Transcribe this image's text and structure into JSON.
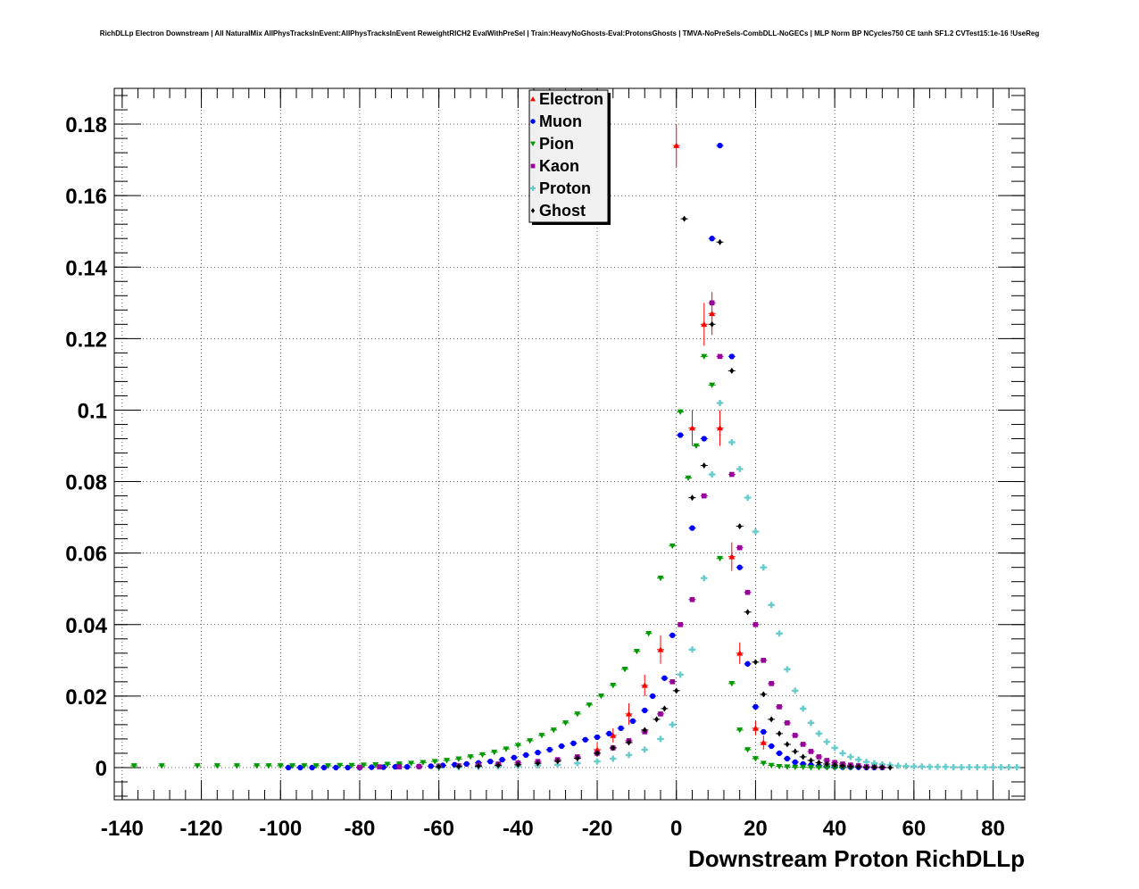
{
  "chart_data": {
    "type": "scatter",
    "title": "RichDLLp Electron Downstream | All NaturalMix AllPhysTracksInEvent:AllPhysTracksInEvent ReweightRICH2 EvalWithPreSel | Train:HeavyNoGhosts-Eval:ProtonsGhosts | TMVA-NoPreSels-CombDLL-NoGECs | MLP Norm BP NCycles750 CE tanh SF1.2 CVTest15:1e-16 !UseReg",
    "xlabel": "Downstream Proton RichDLLp",
    "ylabel": "",
    "xlim": [
      -142,
      88
    ],
    "ylim": [
      -0.009,
      0.19
    ],
    "x_ticks": [
      -140,
      -120,
      -100,
      -80,
      -60,
      -40,
      -20,
      0,
      20,
      40,
      60,
      80
    ],
    "x_tick_labels": [
      "-140",
      "-120",
      "-100",
      "-80",
      "-60",
      "-40",
      "-20",
      "0",
      "20",
      "40",
      "60",
      "80"
    ],
    "y_ticks": [
      0,
      0.02,
      0.04,
      0.06,
      0.08,
      0.1,
      0.12,
      0.14,
      0.16,
      0.18
    ],
    "y_tick_labels": [
      "0",
      "0.02",
      "0.04",
      "0.06",
      "0.08",
      "0.1",
      "0.12",
      "0.14",
      "0.16",
      "0.18"
    ],
    "grid": true,
    "legend_position": "top-center",
    "series": [
      {
        "name": "Electron",
        "color": "#ff0000",
        "marker": "triangle-up",
        "x": [
          -20,
          -16,
          -12,
          -8,
          -4,
          0,
          4,
          7,
          9,
          11,
          14,
          16,
          20,
          22
        ],
        "y": [
          0.005,
          0.009,
          0.015,
          0.023,
          0.033,
          0.174,
          0.095,
          0.124,
          0.127,
          0.095,
          0.059,
          0.032,
          0.011,
          0.007
        ],
        "err": [
          0.002,
          0.002,
          0.003,
          0.003,
          0.004,
          0.006,
          0.005,
          0.006,
          0.006,
          0.005,
          0.004,
          0.003,
          0.002,
          0.002
        ]
      },
      {
        "name": "Muon",
        "color": "#0000ff",
        "marker": "circle",
        "x": [
          -98,
          -95,
          -92,
          -89,
          -86,
          -83,
          -80,
          -77,
          -74,
          -71,
          -68,
          -65,
          -62,
          -59,
          -56,
          -53,
          -50,
          -47,
          -44,
          -41,
          -38,
          -35,
          -32,
          -29,
          -26,
          -23,
          -20,
          -17,
          -14,
          -11,
          -8,
          -6,
          -3,
          -1,
          1,
          4,
          7,
          9,
          11,
          14,
          16,
          18,
          20,
          22,
          24,
          26,
          28,
          30,
          32,
          34,
          36,
          38,
          40,
          42,
          44,
          46,
          48,
          50,
          52
        ],
        "y": [
          0.0,
          0.0,
          0.0,
          0.0,
          0.0,
          0.0,
          0.0,
          0.0001,
          0.0001,
          0.0002,
          0.0002,
          0.0003,
          0.0004,
          0.0006,
          0.0008,
          0.001,
          0.0013,
          0.0017,
          0.0022,
          0.0028,
          0.0035,
          0.0042,
          0.005,
          0.006,
          0.0068,
          0.0078,
          0.0085,
          0.0095,
          0.011,
          0.013,
          0.016,
          0.02,
          0.025,
          0.037,
          0.093,
          0.067,
          0.092,
          0.148,
          0.174,
          0.115,
          0.056,
          0.029,
          0.017,
          0.01,
          0.006,
          0.004,
          0.0025,
          0.0015,
          0.001,
          0.0007,
          0.0005,
          0.0003,
          0.0002,
          0.0001,
          0.0001,
          0.0001,
          0.0,
          0.0,
          0.0
        ]
      },
      {
        "name": "Pion",
        "color": "#009900",
        "marker": "triangle-down",
        "x": [
          -137,
          -130,
          -121,
          -116,
          -111,
          -106,
          -103,
          -100,
          -97,
          -94,
          -91,
          -88,
          -85,
          -82,
          -79,
          -76,
          -73,
          -70,
          -67,
          -64,
          -61,
          -58,
          -55,
          -52,
          -49,
          -46,
          -43,
          -40,
          -37,
          -34,
          -31,
          -28,
          -25,
          -22,
          -19,
          -16,
          -13,
          -10,
          -7,
          -4,
          -1,
          1,
          3,
          5,
          7,
          9,
          11,
          14,
          16,
          18,
          20,
          22,
          24,
          26,
          28,
          30,
          32,
          34,
          36,
          38,
          40,
          42,
          44
        ],
        "y": [
          0.0005,
          0.0005,
          0.0005,
          0.0005,
          0.0005,
          0.0005,
          0.0005,
          0.0005,
          0.0005,
          0.0005,
          0.0005,
          0.0005,
          0.0006,
          0.0006,
          0.0007,
          0.0008,
          0.0009,
          0.001,
          0.0012,
          0.0014,
          0.0017,
          0.002,
          0.0024,
          0.003,
          0.0036,
          0.0043,
          0.0052,
          0.0062,
          0.0075,
          0.009,
          0.0105,
          0.0125,
          0.015,
          0.0175,
          0.02,
          0.023,
          0.0275,
          0.0325,
          0.0375,
          0.053,
          0.062,
          0.0995,
          0.081,
          0.09,
          0.115,
          0.107,
          0.0585,
          0.0235,
          0.0105,
          0.005,
          0.0025,
          0.0012,
          0.0006,
          0.0003,
          0.0002,
          0.0001,
          0.0001,
          0.0,
          0.0,
          0.0,
          0.0,
          0.0,
          0.0
        ]
      },
      {
        "name": "Kaon",
        "color": "#990099",
        "marker": "square",
        "x": [
          -80,
          -75,
          -70,
          -65,
          -60,
          -55,
          -50,
          -45,
          -40,
          -35,
          -30,
          -25,
          -20,
          -16,
          -12,
          -8,
          -4,
          -1,
          1,
          4,
          7,
          9,
          11,
          14,
          16,
          18,
          20,
          22,
          24,
          26,
          28,
          30,
          32,
          34,
          36,
          38,
          40,
          42,
          44,
          46,
          48,
          50,
          52
        ],
        "y": [
          0.0001,
          0.0002,
          0.0002,
          0.0003,
          0.0004,
          0.0005,
          0.0007,
          0.001,
          0.0013,
          0.0017,
          0.0022,
          0.003,
          0.004,
          0.0055,
          0.0075,
          0.01,
          0.015,
          0.024,
          0.04,
          0.047,
          0.076,
          0.13,
          0.115,
          0.082,
          0.0615,
          0.049,
          0.04,
          0.03,
          0.0235,
          0.017,
          0.0125,
          0.009,
          0.0065,
          0.0045,
          0.003,
          0.002,
          0.0014,
          0.001,
          0.0007,
          0.0005,
          0.0003,
          0.0002,
          0.0001
        ]
      },
      {
        "name": "Proton",
        "color": "#66cccc",
        "marker": "cross",
        "x": [
          -60,
          -55,
          -50,
          -45,
          -40,
          -35,
          -30,
          -25,
          -20,
          -16,
          -12,
          -8,
          -4,
          -1,
          1,
          4,
          7,
          9,
          11,
          14,
          16,
          18,
          20,
          22,
          24,
          26,
          28,
          30,
          32,
          34,
          36,
          38,
          40,
          42,
          44,
          46,
          48,
          50,
          52,
          54,
          56,
          58,
          60,
          62,
          64,
          66,
          68,
          70,
          72,
          74,
          76,
          78,
          80,
          82,
          84,
          86
        ],
        "y": [
          0.0001,
          0.0001,
          0.0002,
          0.0003,
          0.0004,
          0.0006,
          0.0008,
          0.0012,
          0.0017,
          0.0025,
          0.0035,
          0.005,
          0.008,
          0.012,
          0.026,
          0.033,
          0.053,
          0.082,
          0.102,
          0.091,
          0.0835,
          0.0755,
          0.066,
          0.056,
          0.0455,
          0.0375,
          0.0275,
          0.0215,
          0.0165,
          0.0125,
          0.0095,
          0.0072,
          0.0055,
          0.004,
          0.003,
          0.0022,
          0.0016,
          0.0012,
          0.0009,
          0.0007,
          0.0005,
          0.0004,
          0.0003,
          0.0003,
          0.0002,
          0.0002,
          0.0002,
          0.0001,
          0.0001,
          0.0001,
          0.0001,
          0.0001,
          0.0001,
          0.0001,
          0.0001,
          0.0001
        ]
      },
      {
        "name": "Ghost",
        "color": "#000000",
        "marker": "diamond",
        "x": [
          -60,
          -55,
          -50,
          -45,
          -40,
          -35,
          -30,
          -25,
          -20,
          -16,
          -12,
          -8,
          -5,
          -3,
          0,
          2,
          4,
          7,
          9,
          11,
          14,
          16,
          18,
          20,
          22,
          24,
          26,
          28,
          30,
          32,
          34,
          36,
          38,
          40,
          42,
          44,
          46,
          48,
          50,
          52,
          54
        ],
        "y": [
          0.0002,
          0.0003,
          0.0004,
          0.0006,
          0.0008,
          0.0012,
          0.0018,
          0.0026,
          0.004,
          0.0055,
          0.007,
          0.0105,
          0.0135,
          0.0165,
          0.0215,
          0.1535,
          0.0755,
          0.0845,
          0.124,
          0.147,
          0.111,
          0.0675,
          0.0435,
          0.0295,
          0.0205,
          0.0135,
          0.0095,
          0.0065,
          0.0045,
          0.003,
          0.002,
          0.0014,
          0.001,
          0.0007,
          0.0005,
          0.0003,
          0.0002,
          0.0001,
          0.0001,
          0.0001,
          0.0
        ]
      }
    ]
  }
}
